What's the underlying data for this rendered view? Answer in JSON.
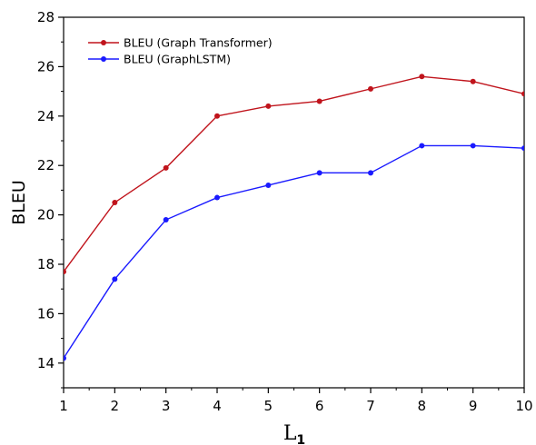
{
  "chart_data": {
    "type": "line",
    "title": "",
    "xlabel": "L",
    "xlabel_subscript": "1",
    "ylabel": "BLEU",
    "x": [
      1,
      2,
      3,
      4,
      5,
      6,
      7,
      8,
      9,
      10
    ],
    "xlim": [
      1,
      10
    ],
    "ylim": [
      13,
      28
    ],
    "x_ticks": [
      1,
      2,
      3,
      4,
      5,
      6,
      7,
      8,
      9,
      10
    ],
    "y_ticks": [
      14,
      16,
      18,
      20,
      22,
      24,
      26,
      28
    ],
    "grid": false,
    "legend_position": "top-left",
    "series": [
      {
        "name": "BLEU (Graph Transformer)",
        "color": "#c0141c",
        "values": [
          17.7,
          20.5,
          21.9,
          24.0,
          24.4,
          24.6,
          25.1,
          25.6,
          25.4,
          24.9
        ]
      },
      {
        "name": "BLEU (GraphLSTM)",
        "color": "#1a1aff",
        "values": [
          14.2,
          17.4,
          19.8,
          20.7,
          21.2,
          21.7,
          21.7,
          22.8,
          22.8,
          22.7
        ]
      }
    ]
  }
}
